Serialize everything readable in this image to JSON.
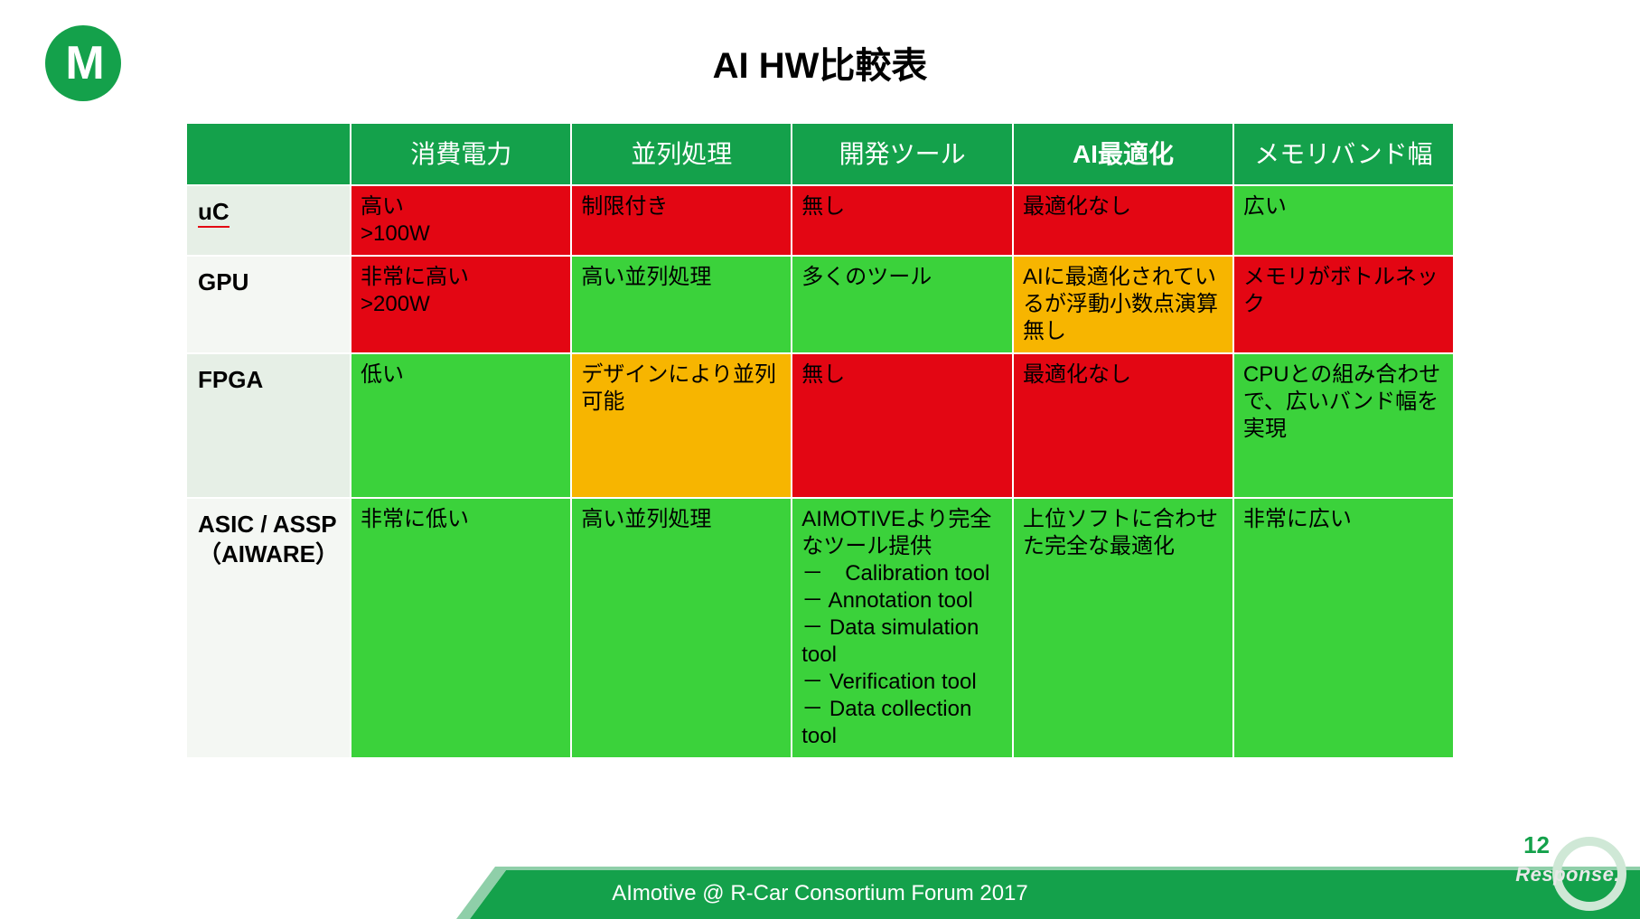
{
  "title": "AI HW比較表",
  "footer": "AImotive @ R-Car Consortium Forum 2017",
  "page_number": "12",
  "watermark": "Response.",
  "colors": {
    "brand_green": "#14a14b",
    "cell_green": "#3bd23b",
    "cell_red": "#e30613",
    "cell_orange": "#f7b500",
    "rowhead_alt": "#e6efe6",
    "rowhead_plain": "#f4f7f3"
  },
  "table": {
    "columns": [
      "消費電力",
      "並列処理",
      "開発ツール",
      "AI最適化",
      "メモリバンド幅"
    ],
    "highlight_col_index": 3,
    "rows": [
      {
        "head": "uC",
        "head_style": "alt",
        "cells": [
          {
            "text": "高い\n>100W",
            "color": "red"
          },
          {
            "text": "制限付き",
            "color": "red"
          },
          {
            "text": "無し",
            "color": "red"
          },
          {
            "text": "最適化なし",
            "color": "red"
          },
          {
            "text": "広い",
            "color": "green"
          }
        ]
      },
      {
        "head": "GPU",
        "head_style": "plain",
        "cells": [
          {
            "text": "非常に高い\n>200W",
            "color": "red"
          },
          {
            "text": "高い並列処理",
            "color": "green"
          },
          {
            "text": "多くのツール",
            "color": "green"
          },
          {
            "text": "AIに最適化されているが浮動小数点演算無し",
            "color": "orange"
          },
          {
            "text": "メモリがボトルネック",
            "color": "red"
          }
        ]
      },
      {
        "head": "FPGA",
        "head_style": "alt",
        "row_class": "tall",
        "cells": [
          {
            "text": "低い",
            "color": "green"
          },
          {
            "text": "デザインにより並列可能",
            "color": "orange"
          },
          {
            "text": "無し",
            "color": "red"
          },
          {
            "text": "最適化なし",
            "color": "red"
          },
          {
            "text": "CPUとの組み合わせで、広いバンド幅を実現",
            "color": "green"
          }
        ]
      },
      {
        "head": "ASIC / ASSP\n（AIWARE）",
        "head_style": "plain",
        "row_class": "vtall",
        "cells": [
          {
            "text": "非常に低い",
            "color": "green"
          },
          {
            "text": "高い並列処理",
            "color": "green"
          },
          {
            "text": "AIMOTIVEより完全なツール提供\n－　Calibration tool\n－ Annotation tool\n－ Data simulation tool\n－ Verification tool\n－ Data collection tool",
            "color": "green"
          },
          {
            "text": "上位ソフトに合わせた完全な最適化",
            "color": "green"
          },
          {
            "text": "非常に広い",
            "color": "green"
          }
        ]
      }
    ]
  }
}
